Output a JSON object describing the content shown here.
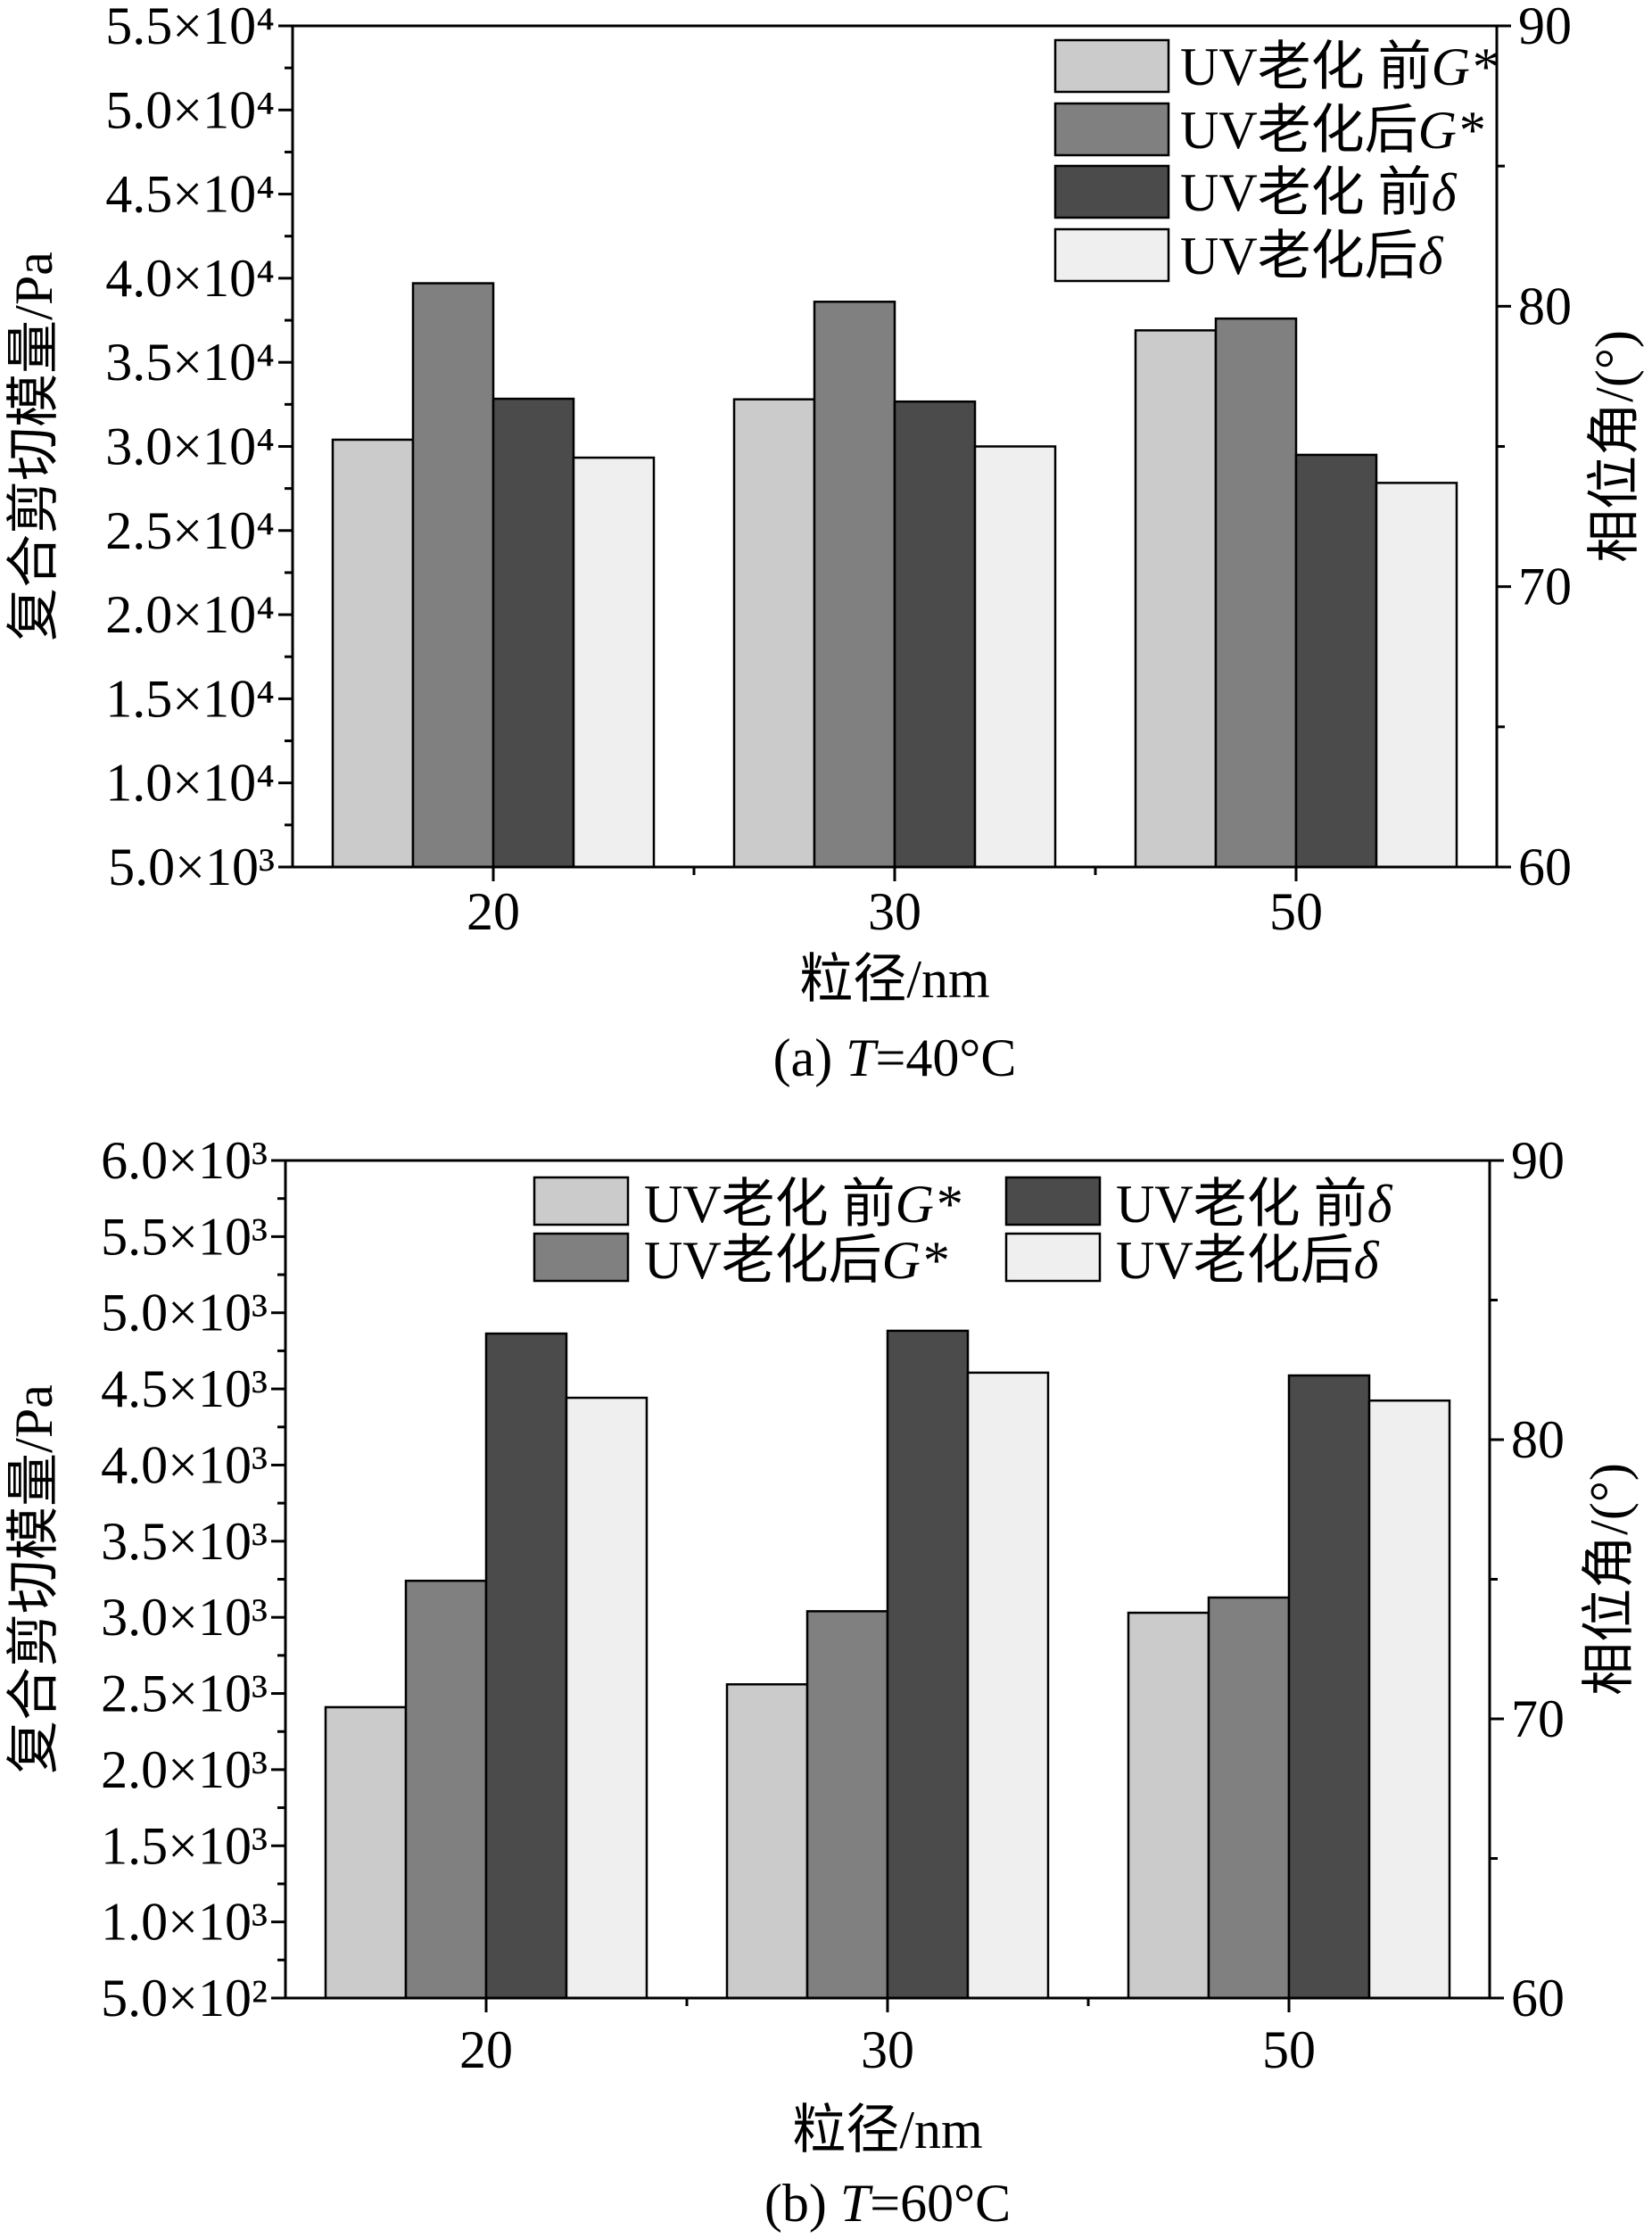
{
  "chart_data": [
    {
      "type": "bar",
      "caption": {
        "prefix": "(a) ",
        "var": "T",
        "suffix": "=40°C"
      },
      "xlabel": "粒径/nm",
      "ylabel": "复合剪切模量/Pa",
      "y2label": "相位角/(°)",
      "categories": [
        "20",
        "30",
        "50"
      ],
      "ylim": [
        5000,
        55000
      ],
      "y2lim": [
        60,
        90
      ],
      "yticks": [
        5000,
        10000,
        15000,
        20000,
        25000,
        30000,
        35000,
        40000,
        45000,
        50000,
        55000
      ],
      "ytick_labels": [
        "5.0×10³",
        "1.0×10⁴",
        "1.5×10⁴",
        "2.0×10⁴",
        "2.5×10⁴",
        "3.0×10⁴",
        "3.5×10⁴",
        "4.0×10⁴",
        "4.5×10⁴",
        "5.0×10⁴",
        "5.5×10⁴"
      ],
      "y2ticks": [
        60,
        70,
        80,
        90
      ],
      "y2tick_labels": [
        "60",
        "70",
        "80",
        "90"
      ],
      "grid": false,
      "legend_position": "top-right",
      "series": [
        {
          "label_text": "UV老化 前",
          "label_symbol": "G*",
          "secondary_axis": false,
          "color": "#cbcbcb",
          "values": [
            30400,
            32800,
            36900
          ]
        },
        {
          "label_text": "UV老化后",
          "label_symbol": "G*",
          "secondary_axis": false,
          "color": "#808080",
          "values": [
            39700,
            38600,
            37600
          ]
        },
        {
          "label_text": "UV老化 前",
          "label_symbol": "δ",
          "secondary_axis": true,
          "color": "#4b4b4b",
          "values": [
            76.7,
            76.6,
            74.7
          ]
        },
        {
          "label_text": "UV老化后",
          "label_symbol": "δ",
          "secondary_axis": true,
          "color": "#efefef",
          "values": [
            74.6,
            75.0,
            73.7
          ]
        }
      ]
    },
    {
      "type": "bar",
      "caption": {
        "prefix": "(b) ",
        "var": "T",
        "suffix": "=60°C"
      },
      "xlabel": "粒径/nm",
      "ylabel": "复合剪切模量/Pa",
      "y2label": "相位角/(°)",
      "categories": [
        "20",
        "30",
        "50"
      ],
      "ylim": [
        500,
        6000
      ],
      "y2lim": [
        60,
        90
      ],
      "yticks": [
        500,
        1000,
        1500,
        2000,
        2500,
        3000,
        3500,
        4000,
        4500,
        5000,
        5500,
        6000
      ],
      "ytick_labels": [
        "5.0×10²",
        "1.0×10³",
        "1.5×10³",
        "2.0×10³",
        "2.5×10³",
        "3.0×10³",
        "3.5×10³",
        "4.0×10³",
        "4.5×10³",
        "5.0×10³",
        "5.5×10³",
        "6.0×10³"
      ],
      "y2ticks": [
        60,
        70,
        80,
        90
      ],
      "y2tick_labels": [
        "60",
        "70",
        "80",
        "90"
      ],
      "grid": false,
      "legend_position": "top",
      "series": [
        {
          "label_text": "UV老化 前",
          "label_symbol": "G*",
          "secondary_axis": false,
          "color": "#cbcbcb",
          "values": [
            2410,
            2560,
            3030
          ]
        },
        {
          "label_text": "UV老化后",
          "label_symbol": "G*",
          "secondary_axis": false,
          "color": "#808080",
          "values": [
            3240,
            3040,
            3130
          ]
        },
        {
          "label_text": "UV老化 前",
          "label_symbol": "δ",
          "secondary_axis": true,
          "color": "#4b4b4b",
          "values": [
            83.8,
            83.9,
            82.3
          ]
        },
        {
          "label_text": "UV老化后",
          "label_symbol": "δ",
          "secondary_axis": true,
          "color": "#efefef",
          "values": [
            81.5,
            82.4,
            81.4
          ]
        }
      ]
    }
  ]
}
